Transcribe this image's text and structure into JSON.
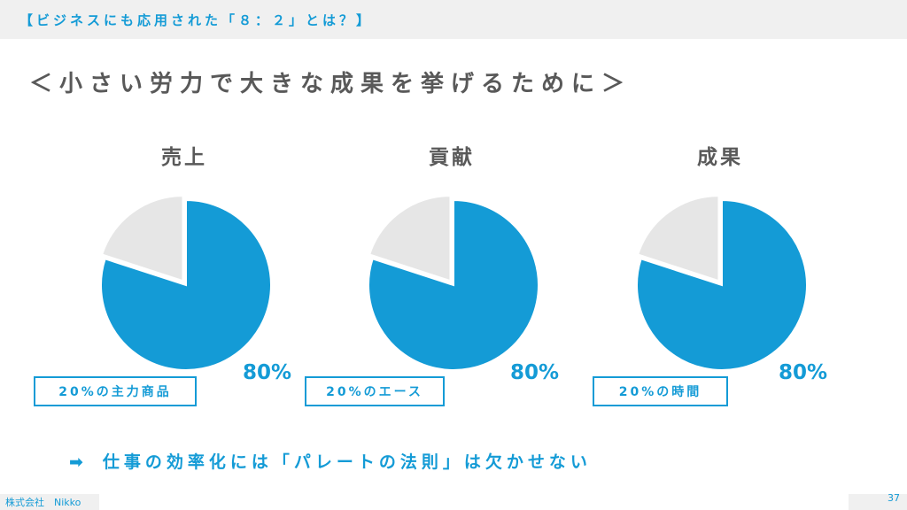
{
  "header": {
    "title": "【ビジネスにも応用された「８：２」とは？】"
  },
  "subtitle": "＜小さい労力で大きな成果を挙げるために＞",
  "colors": {
    "accent": "#149bd6",
    "remainder": "#e6e6e6",
    "title_gray": "#595959"
  },
  "chart_data": [
    {
      "type": "pie",
      "title": "売上",
      "values": [
        80,
        20
      ],
      "value_label": "80%",
      "box_label": "20%の主力商品"
    },
    {
      "type": "pie",
      "title": "貢献",
      "values": [
        80,
        20
      ],
      "value_label": "80%",
      "box_label": "20%のエース"
    },
    {
      "type": "pie",
      "title": "成果",
      "values": [
        80,
        20
      ],
      "value_label": "80%",
      "box_label": "20%の時間"
    }
  ],
  "conclusion": {
    "arrow": "➡",
    "text": "仕事の効率化には「パレートの法則」は欠かせない"
  },
  "footer": {
    "company": "株式会社　Nikko",
    "page_number": "37"
  }
}
